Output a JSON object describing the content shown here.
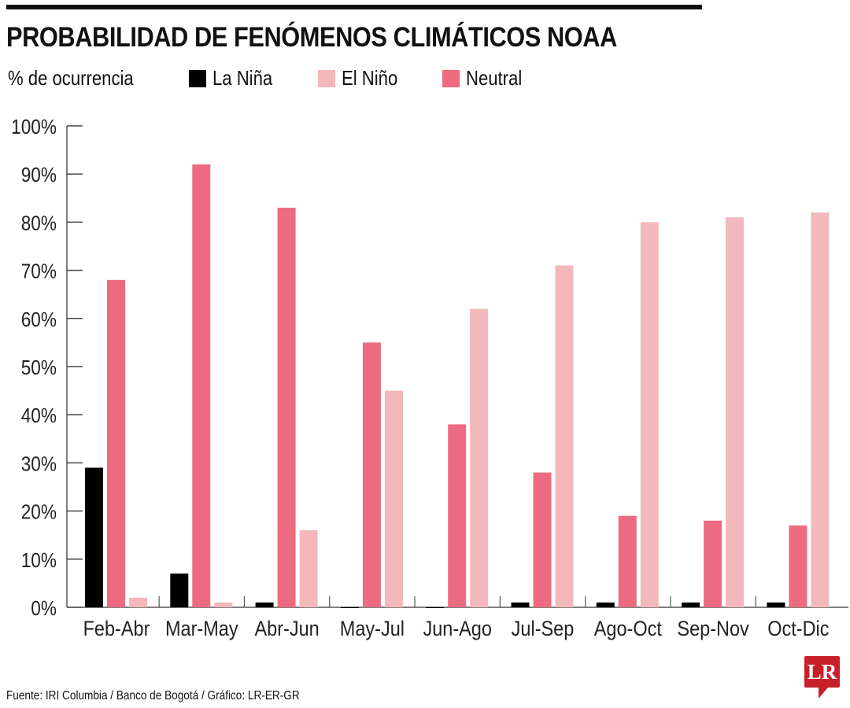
{
  "chart_data": {
    "type": "bar",
    "title": "PROBABILIDAD DE FENÓMENOS CLIMÁTICOS NOAA",
    "ylabel": "% de ocurrencia",
    "xlabel": "",
    "ylim": [
      0,
      100
    ],
    "yticks": [
      "0%",
      "10%",
      "20%",
      "30%",
      "40%",
      "50%",
      "60%",
      "70%",
      "80%",
      "90%",
      "100%"
    ],
    "categories": [
      "Feb-Abr",
      "Mar-May",
      "Abr-Jun",
      "May-Jul",
      "Jun-Ago",
      "Jul-Sep",
      "Ago-Oct",
      "Sep-Nov",
      "Oct-Dic"
    ],
    "series": [
      {
        "name": "La Niña",
        "color": "#000000",
        "values": [
          29,
          7,
          1,
          0,
          0,
          1,
          1,
          1,
          1
        ]
      },
      {
        "name": "Neutral",
        "color": "#ec6b80",
        "values": [
          68,
          92,
          83,
          55,
          38,
          28,
          19,
          18,
          17
        ]
      },
      {
        "name": "El Niño",
        "color": "#f2b8bc",
        "values": [
          2,
          1,
          16,
          45,
          62,
          71,
          80,
          81,
          82
        ]
      }
    ],
    "legend": [
      {
        "name": "La Niña",
        "color": "#000000"
      },
      {
        "name": "El Niño",
        "color": "#f2b8bc"
      },
      {
        "name": "Neutral",
        "color": "#ec6b80"
      }
    ],
    "legend_placement": "top",
    "grid": false
  },
  "source": "Fuente: IRI Columbia / Banco de Bogotá / Gráfico: LR-ER-GR",
  "logo": "LR"
}
